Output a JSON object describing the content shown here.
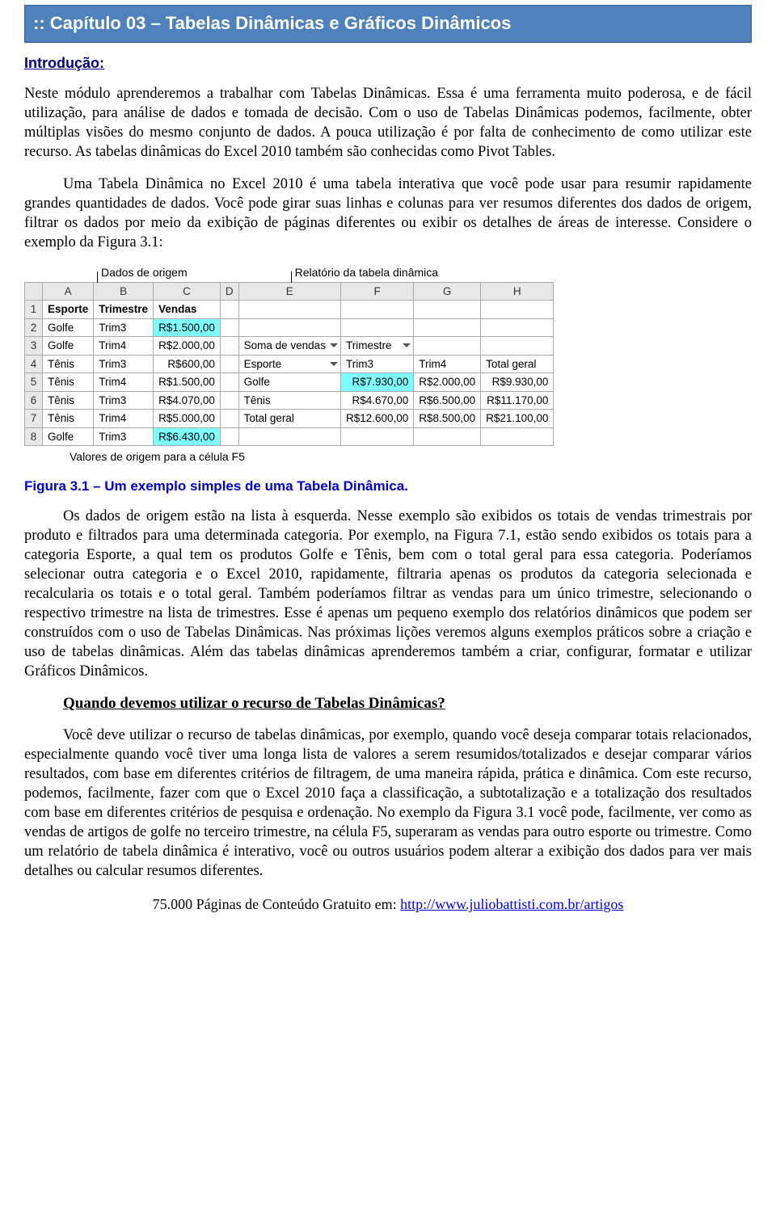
{
  "title": ":: Capítulo 03 – Tabelas Dinâmicas e Gráficos Dinâmicos",
  "intro_heading": "Introdução:",
  "para1": "Neste módulo aprenderemos a trabalhar com Tabelas Dinâmicas. Essa é uma ferramenta muito poderosa, e de fácil utilização, para análise de dados e tomada de decisão. Com o uso de Tabelas Dinâmicas podemos, facilmente, obter múltiplas visões do mesmo conjunto de dados. A pouca utilização é por falta de conhecimento de como utilizar este recurso. As tabelas dinâmicas do Excel 2010 também são conhecidas como Pivot Tables.",
  "para2": "Uma Tabela Dinâmica no Excel 2010 é uma tabela interativa que você pode usar para resumir rapidamente grandes quantidades de dados. Você pode girar suas linhas e colunas para ver resumos diferentes dos dados de origem, filtrar os dados por meio da exibição de páginas diferentes ou exibir os detalhes de áreas de interesse. Considere o exemplo da Figura 3.1:",
  "figure": {
    "label_source": "Dados de origem",
    "label_report": "Relatório da tabela dinâmica",
    "col_headers": [
      "A",
      "B",
      "C",
      "D",
      "E",
      "F",
      "G",
      "H"
    ],
    "row_headers": [
      "1",
      "2",
      "3",
      "4",
      "5",
      "6",
      "7",
      "8"
    ],
    "source_headers": [
      "Esporte",
      "Trimestre",
      "Vendas"
    ],
    "source_rows": [
      {
        "esporte": "Golfe",
        "trim": "Trim3",
        "vendas": "R$1.500,00",
        "hl": true
      },
      {
        "esporte": "Golfe",
        "trim": "Trim4",
        "vendas": "R$2.000,00",
        "hl": false
      },
      {
        "esporte": "Tênis",
        "trim": "Trim3",
        "vendas": "R$600,00",
        "hl": false
      },
      {
        "esporte": "Tênis",
        "trim": "Trim4",
        "vendas": "R$1.500,00",
        "hl": false
      },
      {
        "esporte": "Tênis",
        "trim": "Trim3",
        "vendas": "R$4.070,00",
        "hl": false
      },
      {
        "esporte": "Tênis",
        "trim": "Trim4",
        "vendas": "R$5.000,00",
        "hl": false
      },
      {
        "esporte": "Golfe",
        "trim": "Trim3",
        "vendas": "R$6.430,00",
        "hl": true
      }
    ],
    "pivot_corner": "Soma de vendas",
    "pivot_col_label": "Trimestre",
    "pivot_row_label": "Esporte",
    "pivot_cols": [
      "Trim3",
      "Trim4",
      "Total geral"
    ],
    "pivot_rows": [
      {
        "label": "Golfe",
        "cells": [
          {
            "v": "R$7.930,00",
            "hl": true
          },
          {
            "v": "R$2.000,00"
          },
          {
            "v": "R$9.930,00"
          }
        ]
      },
      {
        "label": "Tênis",
        "cells": [
          {
            "v": "R$4.670,00"
          },
          {
            "v": "R$6.500,00"
          },
          {
            "v": "R$11.170,00"
          }
        ]
      },
      {
        "label": "Total geral",
        "cells": [
          {
            "v": "R$12.600,00"
          },
          {
            "v": "R$8.500,00"
          },
          {
            "v": "R$21.100,00"
          }
        ]
      }
    ],
    "footnote": "Valores de origem para a célula F5"
  },
  "figure_caption": "Figura 3.1 – Um exemplo simples de uma Tabela Dinâmica.",
  "para3": "Os dados de origem estão na lista à esquerda. Nesse exemplo são exibidos os totais de vendas trimestrais por produto e filtrados para uma determinada categoria. Por exemplo, na Figura 7.1, estão sendo exibidos os totais para a categoria Esporte, a qual tem os produtos Golfe e Tênis, bem com o total geral para essa categoria. Poderíamos selecionar outra categoria e o Excel 2010, rapidamente, filtraria apenas os produtos da categoria selecionada e recalcularia os totais e o total geral. Também poderíamos filtrar as vendas para um único trimestre, selecionando o respectivo trimestre na lista de trimestres. Esse é apenas um pequeno exemplo dos relatórios dinâmicos que podem ser construídos com o uso de Tabelas Dinâmicas. Nas próximas lições veremos alguns exemplos práticos sobre a criação e uso de tabelas dinâmicas. Além das tabelas dinâmicas aprenderemos também a criar, configurar, formatar e utilizar Gráficos Dinâmicos.",
  "subheading": "Quando devemos utilizar o recurso de Tabelas Dinâmicas?",
  "para4": "Você deve utilizar o recurso de tabelas dinâmicas, por exemplo, quando você deseja comparar totais relacionados, especialmente quando você tiver uma longa lista de valores a serem resumidos/totalizados e desejar comparar vários resultados, com base em diferentes critérios de filtragem, de uma maneira rápida, prática e dinâmica. Com este recurso, podemos, facilmente, fazer com que o Excel 2010 faça a classificação, a subtotalização e a totalização dos resultados com base em diferentes critérios de pesquisa e ordenação. No exemplo da Figura 3.1 você pode, facilmente, ver como as vendas de artigos de golfe no terceiro trimestre, na célula F5, superaram as vendas para outro esporte ou trimestre. Como um relatório de tabela dinâmica é interativo, você ou outros usuários podem alterar a exibição dos dados para ver mais detalhes ou calcular resumos diferentes.",
  "footer_pre": "75.000 Páginas de Conteúdo Gratuito em: ",
  "footer_link": "http://www.juliobattisti.com.br/artigos"
}
